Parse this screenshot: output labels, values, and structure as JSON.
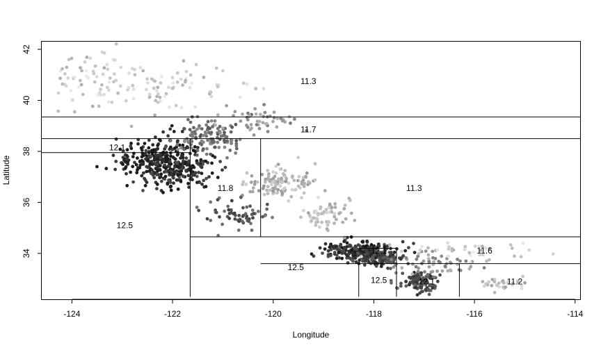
{
  "chart_data": {
    "type": "scatter",
    "title": "",
    "xlabel": "Longitude",
    "ylabel": "Latitude",
    "xlim": [
      -124.6,
      -113.9
    ],
    "ylim": [
      32.2,
      42.3
    ],
    "x_ticks": [
      -124,
      -122,
      -120,
      -118,
      -116,
      -114
    ],
    "y_ticks": [
      34,
      36,
      38,
      40,
      42
    ],
    "x_tick_labels": [
      "-124",
      "-122",
      "-120",
      "-118",
      "-116",
      "-114"
    ],
    "y_tick_labels": [
      "34",
      "36",
      "38",
      "40",
      "42"
    ],
    "grid": false,
    "point_color_scale": "grayscale (darker = higher value)",
    "point_clusters": [
      {
        "center": [
          -122.2,
          37.7
        ],
        "spread": [
          0.45,
          0.45
        ],
        "count": 260,
        "shade": 0.15
      },
      {
        "center": [
          -121.9,
          37.2
        ],
        "spread": [
          0.35,
          0.35
        ],
        "count": 120,
        "shade": 0.2
      },
      {
        "center": [
          -118.3,
          34.1
        ],
        "spread": [
          0.35,
          0.18
        ],
        "count": 220,
        "shade": 0.2
      },
      {
        "center": [
          -117.9,
          33.8
        ],
        "spread": [
          0.25,
          0.15
        ],
        "count": 120,
        "shade": 0.25
      },
      {
        "center": [
          -117.1,
          32.9
        ],
        "spread": [
          0.2,
          0.2
        ],
        "count": 120,
        "shade": 0.3
      },
      {
        "center": [
          -121.3,
          38.6
        ],
        "spread": [
          0.35,
          0.35
        ],
        "count": 120,
        "shade": 0.45
      },
      {
        "center": [
          -119.8,
          36.8
        ],
        "spread": [
          0.35,
          0.3
        ],
        "count": 110,
        "shade": 0.7
      },
      {
        "center": [
          -120.7,
          35.5
        ],
        "spread": [
          0.35,
          0.3
        ],
        "count": 60,
        "shade": 0.35
      },
      {
        "center": [
          -119.0,
          35.4
        ],
        "spread": [
          0.3,
          0.3
        ],
        "count": 60,
        "shade": 0.75
      },
      {
        "center": [
          -122.2,
          40.5
        ],
        "spread": [
          0.7,
          0.5
        ],
        "count": 90,
        "shade": 0.8
      },
      {
        "center": [
          -123.7,
          41.0
        ],
        "spread": [
          0.4,
          0.5
        ],
        "count": 50,
        "shade": 0.8
      },
      {
        "center": [
          -116.8,
          33.6
        ],
        "spread": [
          0.4,
          0.25
        ],
        "count": 60,
        "shade": 0.6
      },
      {
        "center": [
          -115.5,
          32.8
        ],
        "spread": [
          0.25,
          0.12
        ],
        "count": 30,
        "shade": 0.75
      },
      {
        "center": [
          -116.2,
          34.1
        ],
        "spread": [
          0.8,
          0.2
        ],
        "count": 40,
        "shade": 0.82
      },
      {
        "center": [
          -120.3,
          39.2
        ],
        "spread": [
          0.4,
          0.35
        ],
        "count": 50,
        "shade": 0.6
      }
    ],
    "partition_lines": [
      {
        "orientation": "h",
        "value": 39.35,
        "from": -124.6,
        "to": -113.9
      },
      {
        "orientation": "h",
        "value": 38.5,
        "from": -124.6,
        "to": -113.9
      },
      {
        "orientation": "h",
        "value": 37.95,
        "from": -124.6,
        "to": -121.65
      },
      {
        "orientation": "v",
        "value": -121.65,
        "from": 32.3,
        "to": 38.5
      },
      {
        "orientation": "v",
        "value": -120.25,
        "from": 34.65,
        "to": 38.5
      },
      {
        "orientation": "h",
        "value": 34.65,
        "from": -121.65,
        "to": -113.9
      },
      {
        "orientation": "h",
        "value": 33.6,
        "from": -120.25,
        "to": -113.9
      },
      {
        "orientation": "h",
        "value": 34.2,
        "from": -118.3,
        "to": -117.55
      },
      {
        "orientation": "v",
        "value": -118.3,
        "from": 32.3,
        "to": 33.6
      },
      {
        "orientation": "v",
        "value": -117.55,
        "from": 32.3,
        "to": 34.2
      },
      {
        "orientation": "v",
        "value": -116.3,
        "from": 32.3,
        "to": 33.6
      }
    ],
    "region_labels": [
      {
        "text": "11.3",
        "x": -119.3,
        "y": 40.75
      },
      {
        "text": "11.7",
        "x": -119.3,
        "y": 38.85
      },
      {
        "text": "12.1",
        "x": -123.1,
        "y": 38.15
      },
      {
        "text": "11.8",
        "x": -120.95,
        "y": 36.55
      },
      {
        "text": "11.3",
        "x": -117.2,
        "y": 36.55
      },
      {
        "text": "12.5",
        "x": -122.95,
        "y": 35.1
      },
      {
        "text": "12.1",
        "x": -117.9,
        "y": 34.1
      },
      {
        "text": "11.6",
        "x": -115.8,
        "y": 34.1
      },
      {
        "text": "12.5",
        "x": -119.55,
        "y": 33.45
      },
      {
        "text": "12.5",
        "x": -117.9,
        "y": 32.95
      },
      {
        "text": "12.1",
        "x": -116.95,
        "y": 32.9
      },
      {
        "text": "11.2",
        "x": -115.2,
        "y": 32.9
      }
    ]
  }
}
